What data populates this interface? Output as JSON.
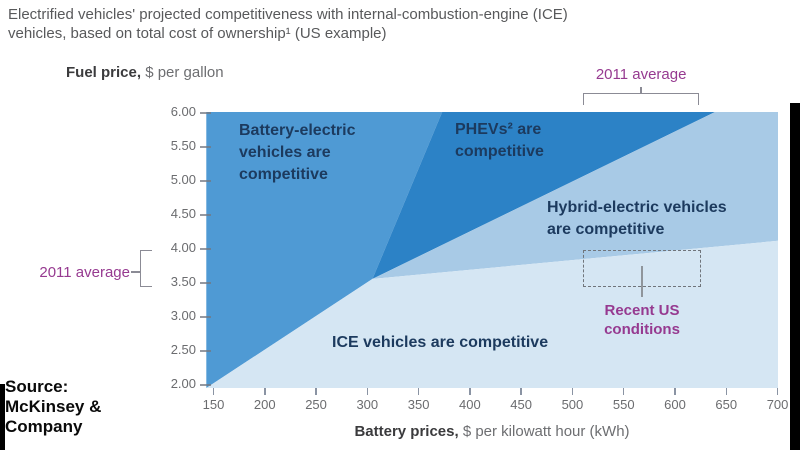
{
  "title": {
    "line1": "Electrified vehicles' projected competitiveness with internal-combustion-engine (ICE)",
    "line2": "vehicles, based on total cost of ownership¹ (US example)"
  },
  "y_axis": {
    "label_bold": "Fuel price,",
    "label_rest": " $ per gallon",
    "ticks": [
      "6.00",
      "5.50",
      "5.00",
      "4.50",
      "4.00",
      "3.50",
      "3.00",
      "2.50",
      "2.00"
    ]
  },
  "x_axis": {
    "label_bold": "Battery prices,",
    "label_rest": " $ per kilowatt hour (kWh)",
    "ticks": [
      "150",
      "200",
      "250",
      "300",
      "350",
      "400",
      "450",
      "500",
      "550",
      "600",
      "650",
      "700"
    ]
  },
  "annotations": {
    "top_avg": "2011 average",
    "left_avg": "2011 average",
    "recent_line1": "Recent US",
    "recent_line2": "conditions"
  },
  "source": {
    "line1": "Source:",
    "line2": "McKinsey &",
    "line3": "Company"
  },
  "colors": {
    "battery_region": "#4F9AD4",
    "phev_region": "#2C82C6",
    "hybrid_region": "#A8CAE6",
    "ice_region": "#D5E6F3",
    "region_label_text": "#1C3A5E",
    "annotation_purple": "#963A90"
  },
  "chart_data": {
    "type": "area",
    "title": "Electrified vehicles' projected competitiveness with internal-combustion-engine (ICE) vehicles, based on total cost of ownership (US example)",
    "xlabel": "Battery prices, $ per kilowatt hour (kWh)",
    "ylabel": "Fuel price, $ per gallon",
    "xlim": [
      143,
      701
    ],
    "ylim": [
      1.95,
      6.02
    ],
    "x_ticks": [
      150,
      200,
      250,
      300,
      350,
      400,
      450,
      500,
      550,
      600,
      650,
      700
    ],
    "y_ticks": [
      2.0,
      2.5,
      3.0,
      3.5,
      4.0,
      4.5,
      5.0,
      5.5,
      6.0
    ],
    "legend": "none",
    "grid": false,
    "regions": [
      {
        "id": "battery",
        "series_name": "Battery-electric vehicles are competitive",
        "label_lines": [
          "Battery-electric",
          "vehicles are",
          "competitive"
        ],
        "color": "#4F9AD4",
        "vertices": [
          [
            143,
            6.02
          ],
          [
            373,
            6.02
          ],
          [
            305,
            3.56
          ],
          [
            143,
            1.95
          ]
        ]
      },
      {
        "id": "phev",
        "series_name": "PHEVs² are competitive",
        "label_lines": [
          "PHEVs² are",
          "competitive"
        ],
        "color": "#2C82C6",
        "vertices": [
          [
            373,
            6.02
          ],
          [
            639,
            6.02
          ],
          [
            305,
            3.56
          ]
        ]
      },
      {
        "id": "hybrid",
        "series_name": "Hybrid-electric vehicles are competitive",
        "label_lines": [
          "Hybrid-electric vehicles",
          "are competitive"
        ],
        "color": "#A8CAE6",
        "vertices": [
          [
            639,
            6.02
          ],
          [
            701,
            6.02
          ],
          [
            701,
            4.12
          ],
          [
            305,
            3.56
          ]
        ]
      },
      {
        "id": "ice",
        "series_name": "ICE vehicles are competitive",
        "label_lines": [
          "ICE vehicles are competitive"
        ],
        "color": "#D5E6F3",
        "vertices": [
          [
            143,
            1.95
          ],
          [
            305,
            3.56
          ],
          [
            701,
            4.12
          ],
          [
            701,
            1.95
          ]
        ]
      }
    ],
    "annotations": {
      "recent_us_box": {
        "battery_range": [
          510,
          626
        ],
        "fuel_range": [
          3.43,
          3.99
        ]
      },
      "avg_2011_battery_range": [
        510,
        624
      ],
      "avg_2011_fuel_range": [
        3.43,
        3.98
      ]
    }
  }
}
